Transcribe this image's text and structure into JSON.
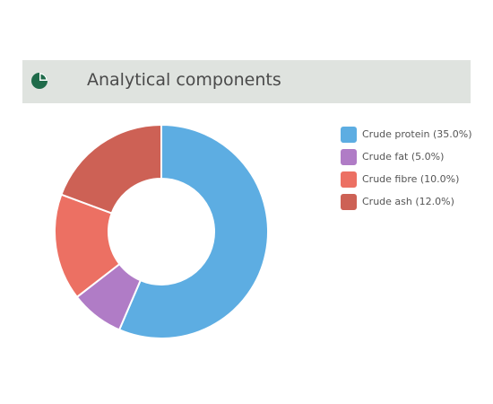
{
  "header": {
    "title": "Analytical components",
    "icon": "pie-chart-icon",
    "icon_color": "#1f6b4a"
  },
  "chart_data": {
    "type": "pie",
    "donut": true,
    "legend_position": "right",
    "slices": [
      {
        "label": "Crude protein (35.0%)",
        "value": 35.0,
        "color": "#5dade2"
      },
      {
        "label": "Crude fat (5.0%)",
        "value": 5.0,
        "color": "#b07cc6"
      },
      {
        "label": "Crude fibre (10.0%)",
        "value": 10.0,
        "color": "#ec7063"
      },
      {
        "label": "Crude ash (12.0%)",
        "value": 12.0,
        "color": "#cd6155"
      }
    ]
  }
}
